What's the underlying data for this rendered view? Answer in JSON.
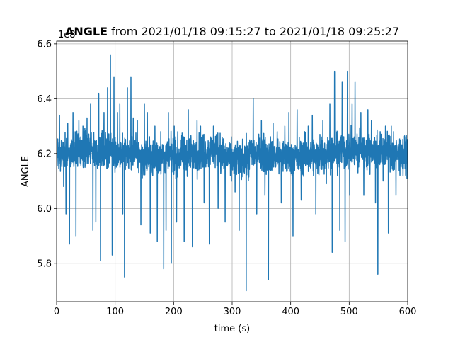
{
  "chart_data": {
    "type": "line",
    "title_bold": "ANGLE",
    "title_rest": " from 2021/01/18 09:15:27 to 2021/01/18 09:25:27",
    "xlabel": "time (s)",
    "ylabel": "ANGLE",
    "offset_text": "1e8",
    "xlim": [
      0,
      600
    ],
    "ylim": [
      5.66,
      6.61
    ],
    "x_ticks": [
      0,
      100,
      200,
      300,
      400,
      500,
      600
    ],
    "x_tick_labels": [
      "0",
      "100",
      "200",
      "300",
      "400",
      "500",
      "600"
    ],
    "y_ticks": [
      5.8,
      6.0,
      6.2,
      6.4,
      6.6
    ],
    "y_tick_labels": [
      "5.8",
      "6.0",
      "6.2",
      "6.4",
      "6.6"
    ],
    "grid": true,
    "series": [
      {
        "color": "#1f77b4",
        "baseline": 6.2,
        "spikes": [
          [
            5,
            6.34
          ],
          [
            12,
            6.08
          ],
          [
            16,
            5.98
          ],
          [
            19,
            6.31
          ],
          [
            22,
            5.87
          ],
          [
            28,
            6.35
          ],
          [
            33,
            5.9
          ],
          [
            38,
            6.32
          ],
          [
            45,
            6.3
          ],
          [
            52,
            6.33
          ],
          [
            58,
            6.38
          ],
          [
            62,
            5.92
          ],
          [
            67,
            5.95
          ],
          [
            72,
            6.42
          ],
          [
            75,
            5.81
          ],
          [
            81,
            6.35
          ],
          [
            87,
            6.44
          ],
          [
            92,
            6.56
          ],
          [
            95,
            5.83
          ],
          [
            98,
            6.48
          ],
          [
            104,
            6.35
          ],
          [
            108,
            6.38
          ],
          [
            113,
            5.98
          ],
          [
            116,
            5.75
          ],
          [
            121,
            6.44
          ],
          [
            127,
            6.48
          ],
          [
            131,
            6.33
          ],
          [
            138,
            6.32
          ],
          [
            144,
            5.94
          ],
          [
            150,
            6.38
          ],
          [
            155,
            6.35
          ],
          [
            160,
            5.91
          ],
          [
            168,
            6.3
          ],
          [
            172,
            5.88
          ],
          [
            178,
            6.28
          ],
          [
            183,
            5.78
          ],
          [
            187,
            5.92
          ],
          [
            191,
            6.35
          ],
          [
            196,
            5.8
          ],
          [
            201,
            6.3
          ],
          [
            205,
            5.95
          ],
          [
            213,
            6.25
          ],
          [
            218,
            5.88
          ],
          [
            225,
            6.36
          ],
          [
            232,
            5.86
          ],
          [
            240,
            6.32
          ],
          [
            246,
            6.3
          ],
          [
            252,
            6.02
          ],
          [
            261,
            5.87
          ],
          [
            268,
            6.3
          ],
          [
            276,
            6.0
          ],
          [
            283,
            6.26
          ],
          [
            288,
            5.95
          ],
          [
            297,
            6.12
          ],
          [
            305,
            6.06
          ],
          [
            312,
            5.92
          ],
          [
            318,
            6.16
          ],
          [
            324,
            5.7
          ],
          [
            330,
            6.25
          ],
          [
            336,
            6.4
          ],
          [
            342,
            5.98
          ],
          [
            350,
            6.32
          ],
          [
            356,
            6.05
          ],
          [
            362,
            5.74
          ],
          [
            370,
            6.31
          ],
          [
            377,
            6.28
          ],
          [
            384,
            6.02
          ],
          [
            390,
            6.3
          ],
          [
            397,
            6.35
          ],
          [
            404,
            5.9
          ],
          [
            411,
            6.36
          ],
          [
            418,
            6.03
          ],
          [
            424,
            6.28
          ],
          [
            430,
            6.3
          ],
          [
            437,
            6.34
          ],
          [
            443,
            5.98
          ],
          [
            450,
            6.27
          ],
          [
            455,
            6.32
          ],
          [
            461,
            6.09
          ],
          [
            467,
            6.38
          ],
          [
            471,
            5.84
          ],
          [
            475,
            6.5
          ],
          [
            480,
            6.12
          ],
          [
            484,
            5.92
          ],
          [
            488,
            6.46
          ],
          [
            493,
            5.88
          ],
          [
            497,
            6.5
          ],
          [
            501,
            6.05
          ],
          [
            505,
            6.38
          ],
          [
            510,
            6.46
          ],
          [
            515,
            6.13
          ],
          [
            520,
            6.35
          ],
          [
            525,
            6.05
          ],
          [
            532,
            6.36
          ],
          [
            538,
            6.32
          ],
          [
            545,
            6.02
          ],
          [
            549,
            5.76
          ],
          [
            553,
            6.28
          ],
          [
            558,
            6.1
          ],
          [
            562,
            6.3
          ],
          [
            567,
            5.91
          ],
          [
            572,
            6.3
          ],
          [
            576,
            6.28
          ],
          [
            580,
            6.05
          ],
          [
            586,
            6.2
          ],
          [
            592,
            6.12
          ],
          [
            597,
            6.26
          ],
          [
            600,
            6.2
          ]
        ]
      }
    ]
  }
}
